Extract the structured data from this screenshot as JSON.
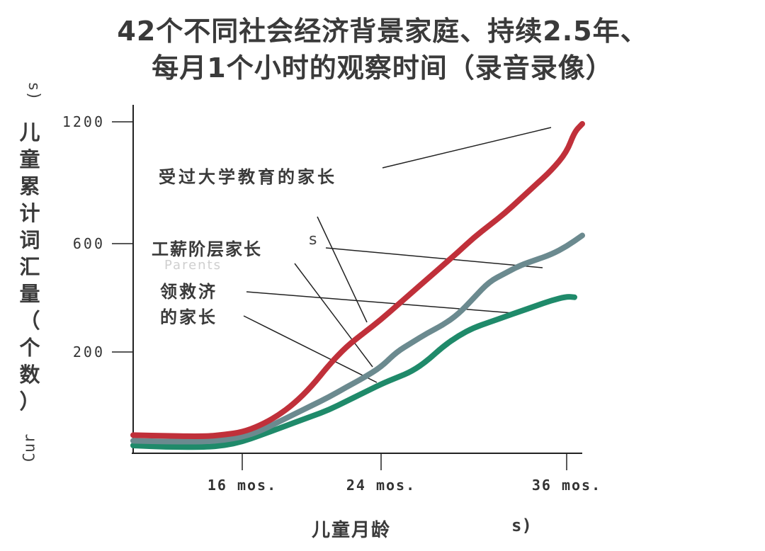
{
  "title_lines": [
    "42个不同社会经济背景家庭、持续2.5年、",
    "每月1个小时的观察时间（录音录像）"
  ],
  "ylabel_chars": [
    "儿",
    "童",
    "累",
    "计",
    "词",
    "汇",
    "量",
    "（",
    "个",
    "数",
    "）"
  ],
  "ylabel_stray_top": "s)",
  "ylabel_stray_bottom": "Cur",
  "xlabel": "儿童月龄",
  "xlabel_stray": "s)",
  "annotations": {
    "college": "受过大学教育的家长",
    "working": "工薪阶层家长",
    "working_stray": "s",
    "welfare_line1": "领救济",
    "welfare_line2": "的家长",
    "ghost_text": "Parents"
  },
  "chart_data": {
    "type": "line",
    "title": "42个不同社会经济背景家庭、持续2.5年、每月1个小时的观察时间（录音录像）",
    "xlabel": "儿童月龄",
    "ylabel": "儿童累计词汇量（个数）",
    "x_ticks": [
      {
        "value": 16,
        "label": "16 mos."
      },
      {
        "value": 24,
        "label": "24 mos."
      },
      {
        "value": 36,
        "label": "36 mos."
      }
    ],
    "y_ticks": [
      {
        "value": 200,
        "label": "200"
      },
      {
        "value": 600,
        "label": "600"
      },
      {
        "value": 1200,
        "label": "1200"
      }
    ],
    "series": [
      {
        "name": "受过大学教育的家长",
        "color": "#c0303a",
        "points": [
          [
            10,
            6
          ],
          [
            12,
            4
          ],
          [
            14,
            3
          ],
          [
            15,
            7
          ],
          [
            16,
            13
          ],
          [
            17,
            28
          ],
          [
            18,
            50
          ],
          [
            19,
            80
          ],
          [
            20,
            120
          ],
          [
            21,
            170
          ],
          [
            22,
            220
          ],
          [
            23,
            270
          ],
          [
            24,
            320
          ],
          [
            25,
            370
          ],
          [
            26,
            420
          ],
          [
            27,
            470
          ],
          [
            28,
            520
          ],
          [
            29,
            570
          ],
          [
            30,
            630
          ],
          [
            31,
            690
          ],
          [
            32,
            750
          ],
          [
            33,
            820
          ],
          [
            34,
            890
          ],
          [
            35,
            960
          ],
          [
            36,
            1050
          ],
          [
            36.5,
            1150
          ],
          [
            37,
            1190
          ]
        ]
      },
      {
        "name": "工薪阶层家长",
        "color": "#6b8a8f",
        "points": [
          [
            10,
            -4
          ],
          [
            12,
            -5
          ],
          [
            14,
            -5
          ],
          [
            15,
            -3
          ],
          [
            16,
            2
          ],
          [
            17,
            15
          ],
          [
            18,
            35
          ],
          [
            19,
            55
          ],
          [
            20,
            75
          ],
          [
            21,
            95
          ],
          [
            22,
            118
          ],
          [
            23,
            140
          ],
          [
            24,
            165
          ],
          [
            25,
            200
          ],
          [
            26,
            235
          ],
          [
            27,
            270
          ],
          [
            28,
            300
          ],
          [
            29,
            340
          ],
          [
            30,
            400
          ],
          [
            31,
            460
          ],
          [
            32,
            490
          ],
          [
            33,
            520
          ],
          [
            34,
            540
          ],
          [
            35,
            560
          ],
          [
            36,
            590
          ],
          [
            37,
            640
          ]
        ]
      },
      {
        "name": "领救济的家长",
        "color": "#1f8a6a",
        "points": [
          [
            10,
            -10
          ],
          [
            12,
            -12
          ],
          [
            14,
            -12
          ],
          [
            15,
            -10
          ],
          [
            16,
            -5
          ],
          [
            17,
            5
          ],
          [
            18,
            20
          ],
          [
            19,
            35
          ],
          [
            20,
            50
          ],
          [
            21,
            65
          ],
          [
            22,
            85
          ],
          [
            23,
            105
          ],
          [
            24,
            125
          ],
          [
            25,
            140
          ],
          [
            26,
            155
          ],
          [
            27,
            180
          ],
          [
            28,
            220
          ],
          [
            29,
            260
          ],
          [
            30,
            290
          ],
          [
            31,
            310
          ],
          [
            32,
            330
          ],
          [
            33,
            350
          ],
          [
            34,
            370
          ],
          [
            35,
            390
          ],
          [
            36,
            405
          ],
          [
            36.5,
            402
          ]
        ]
      }
    ]
  }
}
